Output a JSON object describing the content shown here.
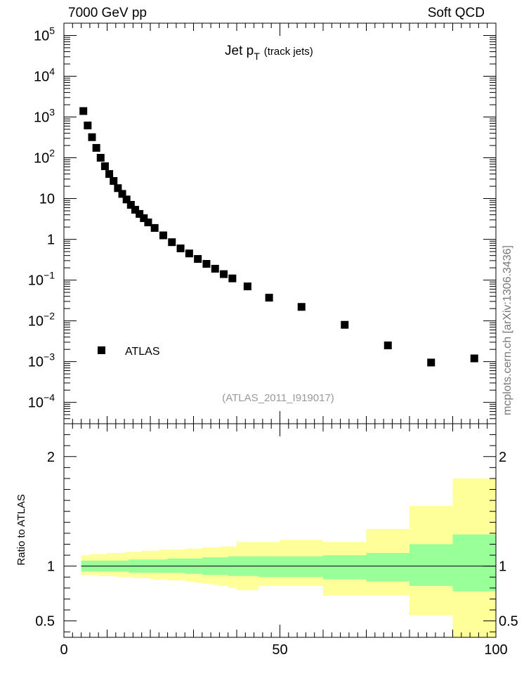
{
  "header": {
    "left": "7000 GeV pp",
    "right": "Soft QCD"
  },
  "side_label": "mcplots.cern.ch [arXiv:1306.3436]",
  "chart_data": [
    {
      "type": "scatter",
      "title": {
        "main": "Jet p",
        "sub": "T",
        "suffix": "(track jets)"
      },
      "analysis_label": "(ATLAS_2011_I919017)",
      "y_scale": "log",
      "ylim": [
        3e-05,
        200000
      ],
      "xlim": [
        0,
        100
      ],
      "y_tick_labels": [
        {
          "value": 100000,
          "base": "10",
          "exp": "5"
        },
        {
          "value": 10000,
          "base": "10",
          "exp": "4"
        },
        {
          "value": 1000,
          "base": "10",
          "exp": "3"
        },
        {
          "value": 100,
          "base": "10",
          "exp": "2"
        },
        {
          "value": 10,
          "base": "10",
          "exp": ""
        },
        {
          "value": 1,
          "base": "1",
          "exp": ""
        },
        {
          "value": 0.1,
          "base": "10",
          "exp": "−1"
        },
        {
          "value": 0.01,
          "base": "10",
          "exp": "−2"
        },
        {
          "value": 0.001,
          "base": "10",
          "exp": "−3"
        },
        {
          "value": 0.0001,
          "base": "10",
          "exp": "−4"
        }
      ],
      "legend": {
        "entry": "ATLAS",
        "placement": "lower-left"
      },
      "series": [
        {
          "name": "ATLAS",
          "marker": "square",
          "color": "#000000",
          "x": [
            4.5,
            5.5,
            6.5,
            7.5,
            8.5,
            9.5,
            10.5,
            11.5,
            12.5,
            13.5,
            14.5,
            15.5,
            16.5,
            17.5,
            18.5,
            19.5,
            21,
            23,
            25,
            27,
            29,
            31,
            33,
            35,
            37,
            39,
            42.5,
            47.5,
            55,
            65,
            75,
            85,
            95
          ],
          "y": [
            1400,
            620,
            320,
            175,
            100,
            62,
            40,
            27,
            18,
            13,
            9.5,
            7,
            5.3,
            4.2,
            3.3,
            2.6,
            1.9,
            1.25,
            0.85,
            0.6,
            0.45,
            0.33,
            0.25,
            0.19,
            0.14,
            0.11,
            0.07,
            0.037,
            0.022,
            0.008,
            0.0025,
            0.00095,
            0.0012
          ]
        }
      ]
    },
    {
      "type": "area",
      "ylabel": "Ratio to ATLAS",
      "xlim": [
        0,
        100
      ],
      "ylim": [
        0.35,
        2.3
      ],
      "y_tick_labels": [
        "2",
        "1",
        "0.5"
      ],
      "y_tick_values": [
        2,
        1,
        0.5
      ],
      "x_tick_labels": [
        "0",
        "50",
        "100"
      ],
      "x_tick_values": [
        0,
        50,
        100
      ],
      "reference_line": 1,
      "bands": {
        "bin_edges": [
          4,
          5,
          6,
          7,
          8,
          9,
          10,
          11,
          12,
          13,
          14,
          15,
          16,
          17,
          18,
          19,
          20,
          22,
          24,
          26,
          28,
          30,
          32,
          34,
          36,
          38,
          40,
          45,
          50,
          60,
          70,
          80,
          90,
          100
        ],
        "stat_lo": [
          0.95,
          0.95,
          0.95,
          0.95,
          0.95,
          0.95,
          0.95,
          0.95,
          0.95,
          0.95,
          0.95,
          0.94,
          0.94,
          0.94,
          0.94,
          0.94,
          0.94,
          0.94,
          0.94,
          0.94,
          0.93,
          0.93,
          0.92,
          0.92,
          0.92,
          0.91,
          0.91,
          0.9,
          0.9,
          0.88,
          0.86,
          0.82,
          0.77,
          0.78
        ],
        "stat_hi": [
          1.05,
          1.05,
          1.05,
          1.05,
          1.05,
          1.05,
          1.05,
          1.05,
          1.05,
          1.05,
          1.05,
          1.06,
          1.06,
          1.06,
          1.06,
          1.06,
          1.06,
          1.06,
          1.07,
          1.07,
          1.07,
          1.07,
          1.08,
          1.08,
          1.08,
          1.09,
          1.09,
          1.09,
          1.09,
          1.1,
          1.12,
          1.2,
          1.29,
          1.28
        ],
        "total_lo": [
          0.92,
          0.92,
          0.92,
          0.92,
          0.91,
          0.91,
          0.91,
          0.91,
          0.9,
          0.9,
          0.9,
          0.9,
          0.89,
          0.89,
          0.89,
          0.89,
          0.88,
          0.88,
          0.87,
          0.87,
          0.86,
          0.85,
          0.84,
          0.83,
          0.82,
          0.8,
          0.78,
          0.82,
          0.82,
          0.73,
          0.73,
          0.55,
          0.35,
          0.35
        ],
        "total_hi": [
          1.1,
          1.1,
          1.11,
          1.11,
          1.11,
          1.11,
          1.12,
          1.12,
          1.12,
          1.12,
          1.13,
          1.13,
          1.13,
          1.13,
          1.14,
          1.14,
          1.14,
          1.15,
          1.15,
          1.15,
          1.16,
          1.16,
          1.17,
          1.17,
          1.18,
          1.18,
          1.22,
          1.22,
          1.24,
          1.22,
          1.34,
          1.55,
          1.8,
          1.8
        ],
        "inner_color": "#99ff99",
        "outer_color": "#ffff99"
      }
    }
  ]
}
